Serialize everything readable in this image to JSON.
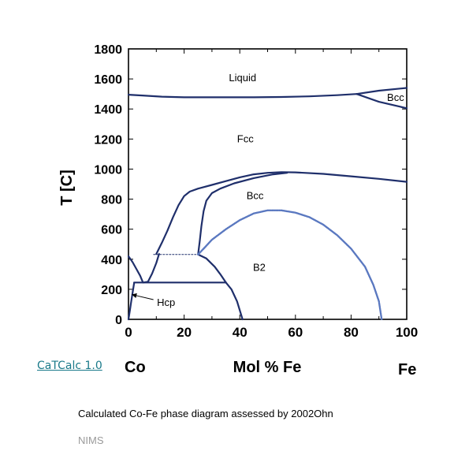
{
  "chart_data": {
    "type": "line",
    "title": "",
    "xlabel": "Mol % Fe",
    "ylabel": "T [C]",
    "xlim": [
      0,
      100
    ],
    "ylim": [
      0,
      1800
    ],
    "xticks": [
      0,
      20,
      40,
      60,
      80,
      100
    ],
    "yticks": [
      0,
      200,
      400,
      600,
      800,
      1000,
      1200,
      1400,
      1600,
      1800
    ],
    "endpoint_labels": {
      "left": "Co",
      "right": "Fe"
    },
    "colors": {
      "boundary": "#1f2f6b",
      "order_disorder": "#5a78c0"
    },
    "region_labels": [
      {
        "text": "Liquid",
        "x": 41,
        "y": 1605
      },
      {
        "text": "Bcc",
        "x": 96,
        "y": 1475
      },
      {
        "text": "Fcc",
        "x": 42,
        "y": 1200
      },
      {
        "text": "Bcc",
        "x": 45.5,
        "y": 820
      },
      {
        "text": "B2",
        "x": 47,
        "y": 345
      },
      {
        "text": "Hcp",
        "x": 13.5,
        "y": 110,
        "arrow_to": {
          "x": 1.2,
          "y": 165
        }
      }
    ],
    "series": [
      {
        "style": "solid",
        "points": [
          [
            0,
            1495
          ],
          [
            5,
            1490
          ],
          [
            12,
            1482
          ],
          [
            20,
            1478
          ],
          [
            30,
            1478
          ],
          [
            45,
            1478
          ],
          [
            55,
            1480
          ],
          [
            65,
            1484
          ],
          [
            75,
            1492
          ],
          [
            82,
            1500
          ]
        ]
      },
      {
        "style": "solid",
        "points": [
          [
            82,
            1500
          ],
          [
            90,
            1522
          ],
          [
            100,
            1540
          ]
        ]
      },
      {
        "style": "solid",
        "points": [
          [
            82,
            1500
          ],
          [
            90,
            1448
          ],
          [
            100,
            1405
          ]
        ]
      },
      {
        "style": "solid",
        "points": [
          [
            10,
            435
          ],
          [
            12,
            510
          ],
          [
            14,
            590
          ],
          [
            16,
            680
          ],
          [
            18,
            760
          ],
          [
            20,
            820
          ],
          [
            22,
            850
          ],
          [
            25,
            870
          ],
          [
            30,
            895
          ],
          [
            35,
            920
          ],
          [
            40,
            945
          ],
          [
            45,
            965
          ],
          [
            50,
            975
          ],
          [
            55,
            980
          ],
          [
            60,
            978
          ],
          [
            70,
            968
          ],
          [
            80,
            952
          ],
          [
            90,
            935
          ],
          [
            100,
            915
          ]
        ]
      },
      {
        "style": "solid",
        "points": [
          [
            25,
            432
          ],
          [
            25.6,
            520
          ],
          [
            26.2,
            620
          ],
          [
            27,
            720
          ],
          [
            28,
            790
          ],
          [
            30,
            840
          ],
          [
            33,
            870
          ],
          [
            38,
            905
          ],
          [
            45,
            940
          ],
          [
            52,
            965
          ],
          [
            57,
            975
          ]
        ]
      },
      {
        "style": "solid",
        "points": [
          [
            0,
            420
          ],
          [
            1.5,
            380
          ],
          [
            3,
            330
          ],
          [
            4.2,
            290
          ],
          [
            5.2,
            245
          ],
          [
            7,
            250
          ],
          [
            8.5,
            305
          ],
          [
            10,
            375
          ],
          [
            11,
            435
          ]
        ]
      },
      {
        "style": "solid",
        "points": [
          [
            0,
            0
          ],
          [
            0.5,
            60
          ],
          [
            1,
            120
          ],
          [
            1.5,
            180
          ],
          [
            2,
            240
          ]
        ]
      },
      {
        "style": "solid",
        "points": [
          [
            2,
            245
          ],
          [
            35,
            245
          ]
        ]
      },
      {
        "style": "solid",
        "points": [
          [
            25,
            432
          ],
          [
            28,
            405
          ],
          [
            31,
            350
          ],
          [
            33,
            300
          ],
          [
            35,
            245
          ]
        ]
      },
      {
        "style": "solid",
        "points": [
          [
            35,
            245
          ],
          [
            37,
            200
          ],
          [
            39,
            120
          ],
          [
            41,
            0
          ]
        ]
      },
      {
        "style": "dashed",
        "points": [
          [
            9,
            432
          ],
          [
            25,
            432
          ]
        ]
      },
      {
        "style": "dotted",
        "points": [
          [
            25,
            432
          ],
          [
            27,
            470
          ],
          [
            30,
            530
          ],
          [
            35,
            600
          ],
          [
            40,
            660
          ],
          [
            45,
            705
          ],
          [
            50,
            725
          ],
          [
            55,
            725
          ],
          [
            60,
            710
          ],
          [
            65,
            680
          ],
          [
            70,
            630
          ],
          [
            75,
            560
          ],
          [
            80,
            470
          ],
          [
            85,
            350
          ],
          [
            88,
            230
          ],
          [
            90,
            120
          ],
          [
            91,
            0
          ]
        ]
      }
    ]
  },
  "footer": {
    "link_text": "CaTCalc 1.0",
    "caption": "Calculated Co-Fe phase diagram assessed by 2002Ohn",
    "credit": "NIMS"
  }
}
